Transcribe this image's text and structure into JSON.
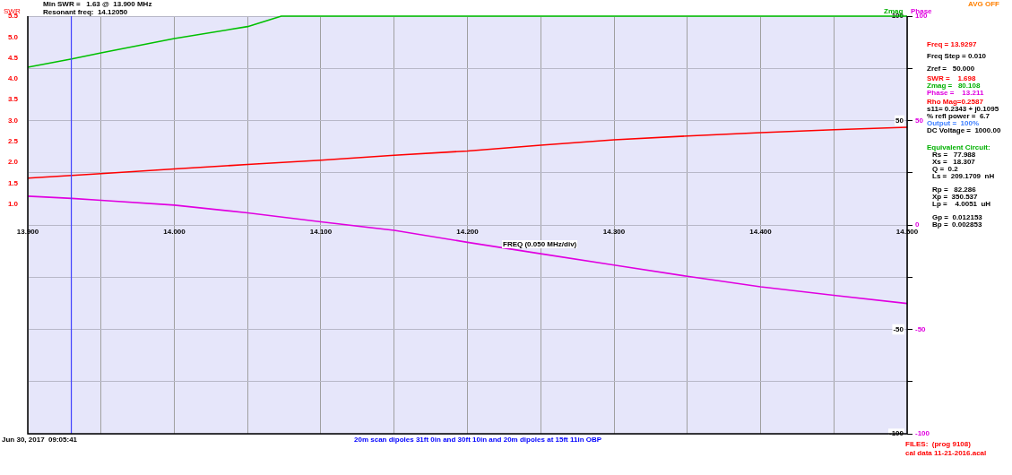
{
  "chart_data": {
    "type": "line",
    "title": "Min SWR =   1.63 @  13.900 MHz",
    "subtitle": "Resonant freq:  14.12050",
    "xlabel": "FREQ (0.050 MHz/div)",
    "ylabel": "SWR",
    "y2label": "Zmag",
    "y3label": "Phase",
    "xlim": [
      13.9,
      14.5
    ],
    "xticks": [
      {
        "value": 13.9,
        "label": "13.900"
      },
      {
        "value": 13.95,
        "label": null
      },
      {
        "value": 14.0,
        "label": "14.000"
      },
      {
        "value": 14.05,
        "label": null
      },
      {
        "value": 14.1,
        "label": "14.100"
      },
      {
        "value": 14.15,
        "label": null
      },
      {
        "value": 14.2,
        "label": "14.200"
      },
      {
        "value": 14.25,
        "label": null
      },
      {
        "value": 14.3,
        "label": "14.300"
      },
      {
        "value": 14.35,
        "label": null
      },
      {
        "value": 14.4,
        "label": "14.400"
      },
      {
        "value": 14.45,
        "label": null
      },
      {
        "value": 14.5,
        "label": "14.500"
      }
    ],
    "ylim": [
      -4.5,
      5.5
    ],
    "yticks": [
      {
        "value": 1,
        "label": "1.0"
      },
      1.5,
      {
        "value": 2,
        "label": "2.0"
      },
      2.5,
      {
        "value": 3,
        "label": "3.0"
      },
      3.5,
      {
        "value": 4,
        "label": "4.0"
      },
      4.5,
      {
        "value": 5,
        "label": "5.0"
      },
      5.5
    ],
    "y2lim": [
      -100,
      100
    ],
    "y2ticks": [
      -100,
      -50,
      50,
      100
    ],
    "y3lim": [
      -100,
      100
    ],
    "y3ticks": [
      -100,
      {
        "value": -75,
        "label": null
      },
      -50,
      {
        "value": -25,
        "label": null
      },
      0,
      {
        "value": 25,
        "label": null
      },
      50,
      {
        "value": 75,
        "label": null
      },
      100
    ],
    "grid": true,
    "legend": false,
    "marker": "none",
    "line_style": "solid",
    "series": [
      {
        "color": "#ff0000",
        "x": [
          13.9,
          13.95,
          14.0,
          14.05,
          14.1,
          14.15,
          14.2,
          14.25,
          14.3,
          14.35,
          14.4,
          14.45,
          14.5
        ],
        "values": [
          1.62,
          1.73,
          1.84,
          1.95,
          2.05,
          2.17,
          2.27,
          2.41,
          2.54,
          2.63,
          2.71,
          2.78,
          2.84
        ]
      },
      {
        "color": "#00c000",
        "axis": "y2",
        "x": [
          13.9,
          13.93,
          13.95,
          14.0,
          14.05,
          14.073,
          14.5
        ],
        "values": [
          75.5,
          79.5,
          82.4,
          89.3,
          95.0,
          100,
          100
        ]
      },
      {
        "color": "#e000e0",
        "axis": "y2",
        "x": [
          13.9,
          13.93,
          13.95,
          14.0,
          14.05,
          14.1,
          14.15,
          14.2,
          14.25,
          14.3,
          14.35,
          14.4,
          14.45,
          14.5
        ],
        "values": [
          13.8,
          12.7,
          11.8,
          9.5,
          5.8,
          1.5,
          -2.6,
          -8.3,
          -13.8,
          -19.2,
          -24.6,
          -29.6,
          -33.7,
          -37.6
        ]
      }
    ],
    "ref_lines": [
      {
        "axis": "x",
        "value": 13.9297,
        "color": "#4040ff"
      }
    ],
    "annotations": [
      "AVG OFF",
      "Freq = 13.9297",
      "Freq Step = 0.010",
      "Zref =   50.000",
      "SWR =    1.698",
      "Zmag =   80.108",
      "Phase =    13.211",
      "Rho Mag=0.2587",
      "s11= 0.2343 + j0.1095",
      "% refl power =  6.7",
      "Output =  100%",
      "DC Voltage =  1000.00",
      "Equivalent Circuit:",
      "Rs =   77.988",
      "Xs =   18.307",
      "Q =  0.2",
      "Ls =  209.1709  nH",
      "Rp =   82.286",
      "Xp =  350.537",
      "Lp =    4.0051  uH",
      "Gp =  0.012153",
      "Bp =  0.002853",
      "Jun 30, 2017  09:05:41",
      "20m scan dipoles 31ft 0in and 30ft 10in and 20m dipoles at 15ft 11in OBP",
      "FILES:  (prog 9108)",
      "cal data 11-21-2016.acal"
    ]
  }
}
